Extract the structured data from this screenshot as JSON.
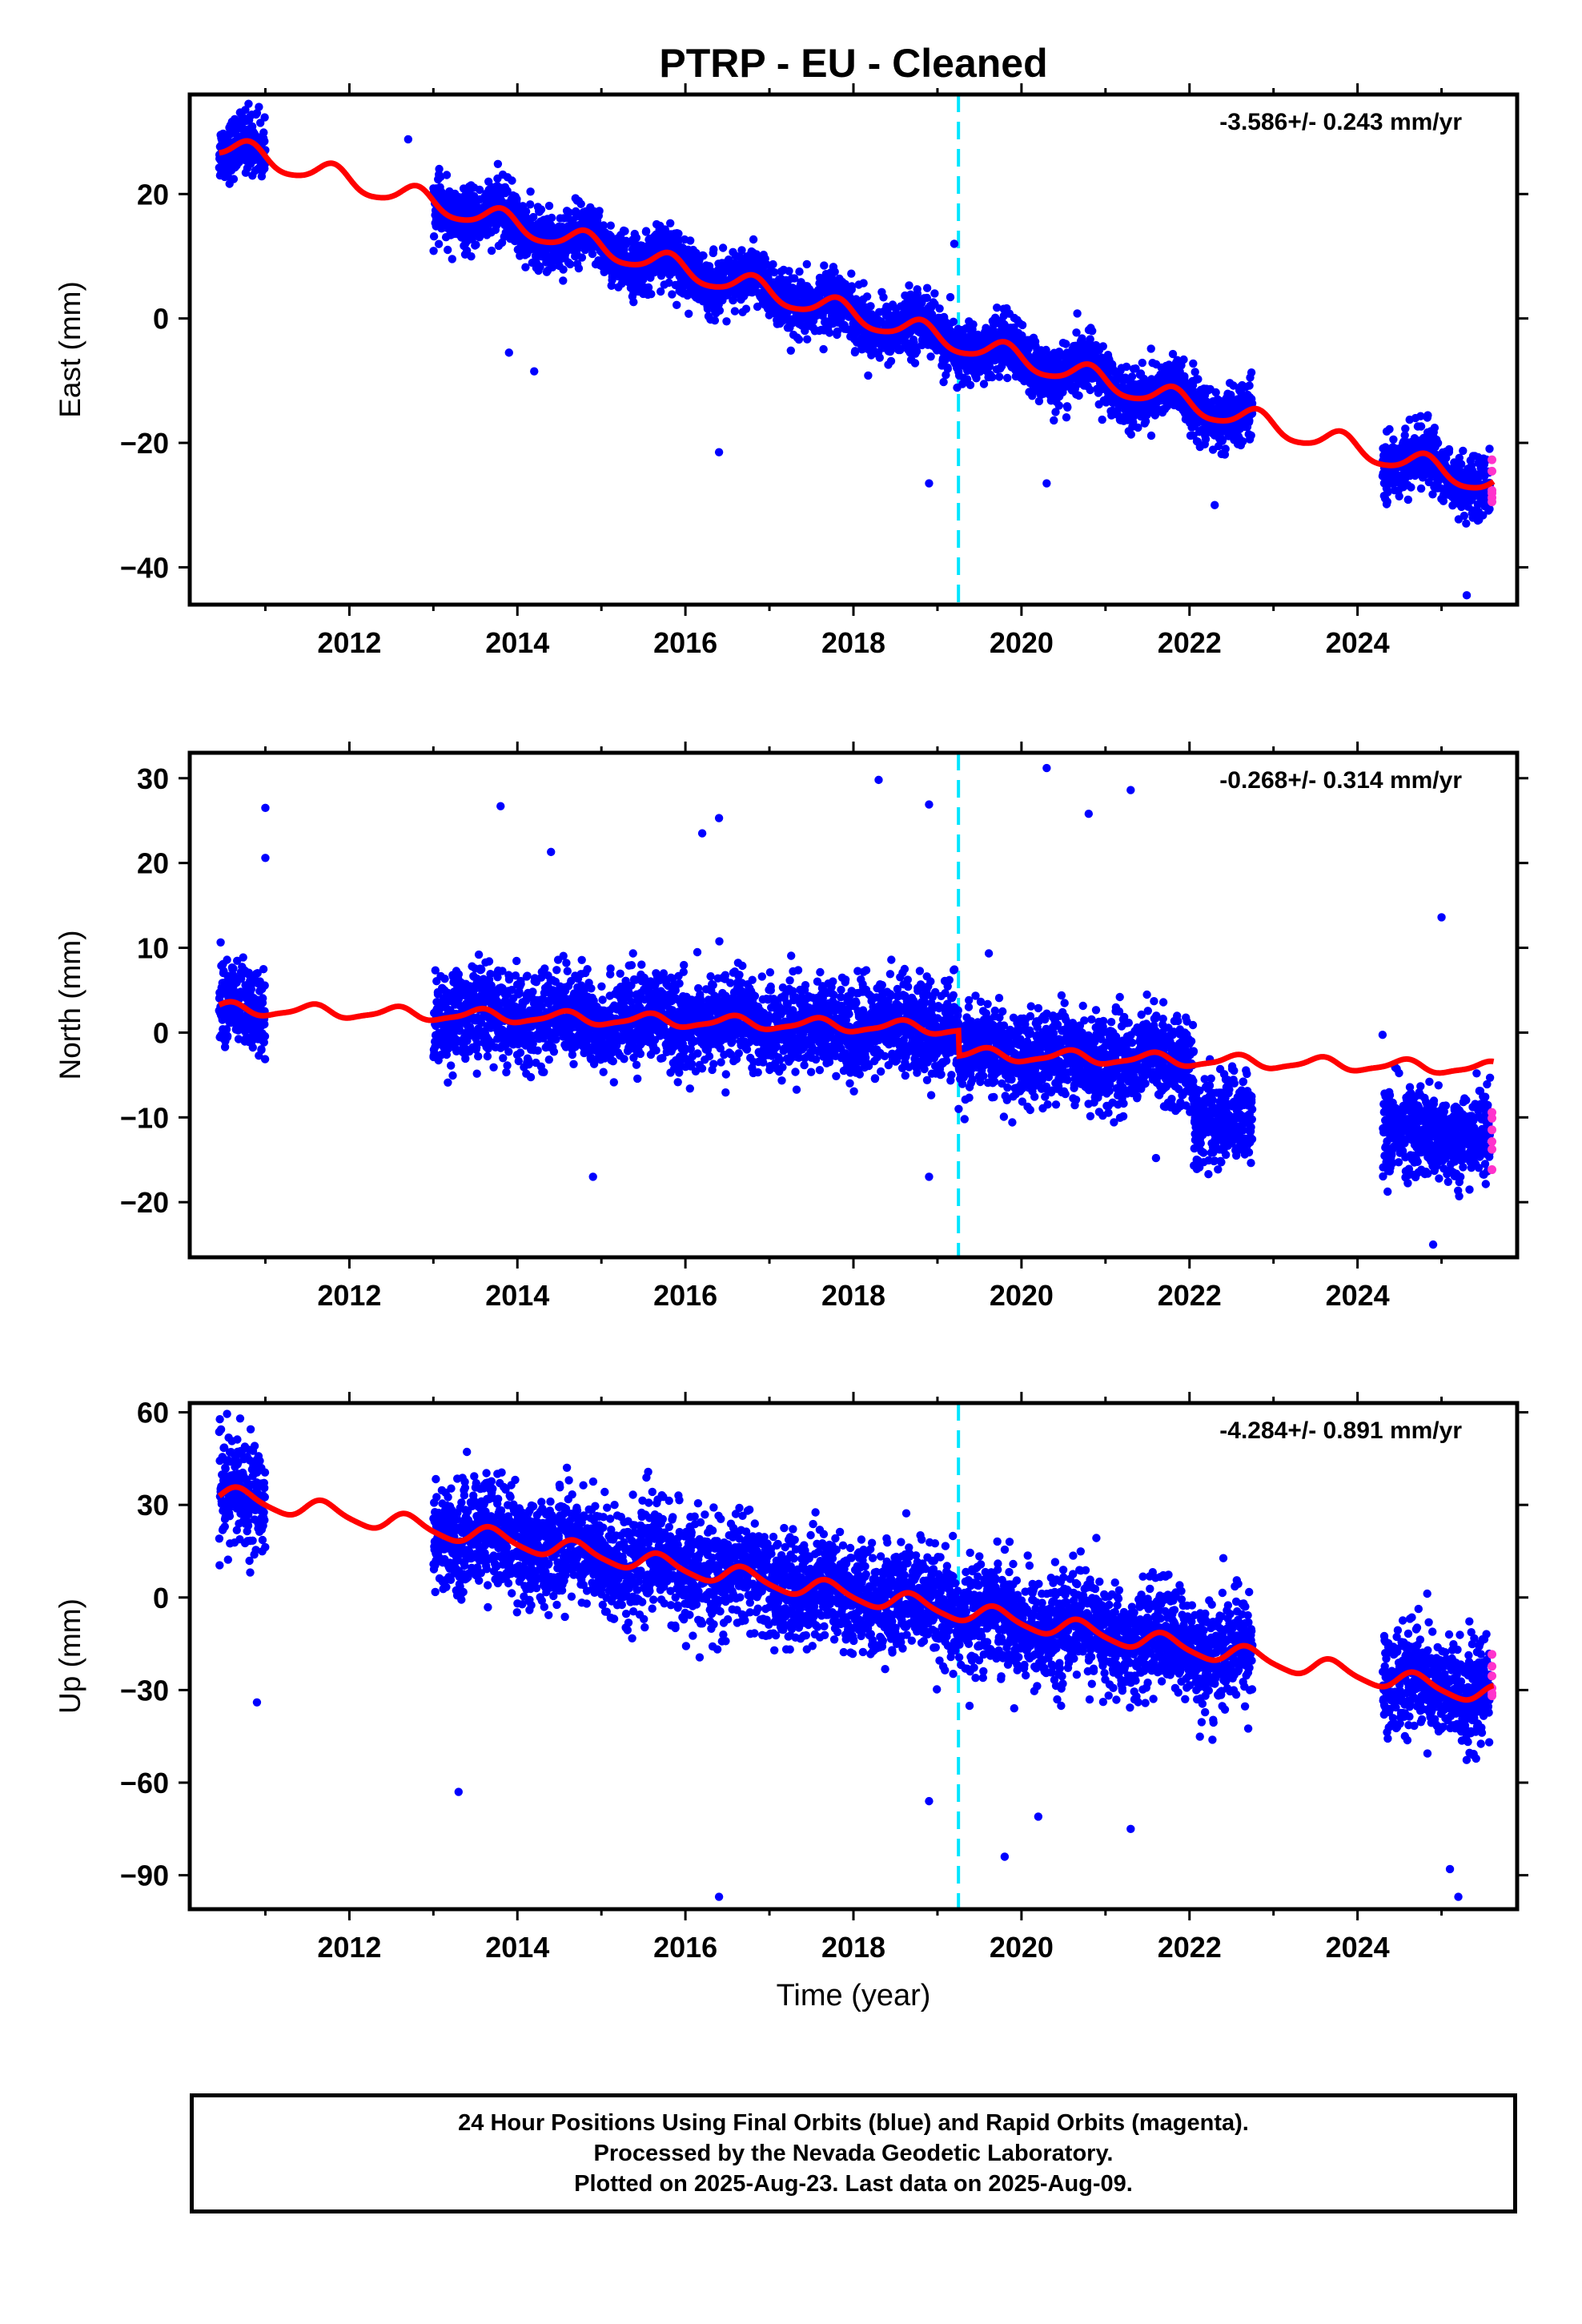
{
  "chart_data": {
    "type": "scatter",
    "title": "PTRP  - EU - Cleaned",
    "xlabel": "Time (year)",
    "xlim": [
      2010.1,
      2025.9
    ],
    "x_ticks": [
      "2012",
      "2014",
      "2016",
      "2018",
      "2020",
      "2022",
      "2024"
    ],
    "vertical_line_x": 2019.25,
    "vertical_line_color": "#00e5ff",
    "final_color": "#0000ff",
    "rapid_color": "#ff33cc",
    "model_color": "#ff0000",
    "panels": [
      {
        "ylabel": "East (mm)",
        "rate": "-3.586+/- 0.243 mm/yr",
        "ylim": [
          -46,
          36
        ],
        "yticks": [
          -40,
          -20,
          0,
          20
        ],
        "ytick_labels": [
          "−40",
          "−20",
          "0",
          "20"
        ],
        "model": {
          "t0": 2010.5,
          "v0": 27.5,
          "slope": -3.586,
          "a1": 1.8,
          "p1": 0.55,
          "a2": 0.3,
          "p2": 1.2,
          "breaks": []
        },
        "data": {
          "sd": 2.3,
          "outliers": [
            [
              2010.8,
              34.5
            ],
            [
              2010.9,
              33
            ],
            [
              2012.7,
              28.8
            ],
            [
              2013.9,
              -5.5
            ],
            [
              2014.2,
              -8.5
            ],
            [
              2016.4,
              -21.5
            ],
            [
              2018.9,
              -26.5
            ],
            [
              2019.2,
              12
            ],
            [
              2020.3,
              -26.5
            ],
            [
              2022.3,
              -30
            ],
            [
              2025.3,
              -44.5
            ]
          ]
        }
      },
      {
        "ylabel": "North (mm)",
        "rate": "-0.268+/- 0.314 mm/yr",
        "ylim": [
          -26.5,
          33
        ],
        "yticks": [
          -20,
          -10,
          0,
          10,
          20,
          30
        ],
        "ytick_labels": [
          "−20",
          "−10",
          "0",
          "10",
          "20",
          "30"
        ],
        "model": {
          "t0": 2010.5,
          "v0": 2.8,
          "slope": -0.268,
          "a1": 0.7,
          "p1": 0.3,
          "a2": 0.2,
          "p2": 1.0,
          "breaks": [
            [
              2019.25,
              -3.0
            ]
          ]
        },
        "data": {
          "sd": 2.6,
          "outliers": [
            [
              2011.0,
              26.5
            ],
            [
              2011.0,
              20.6
            ],
            [
              2013.8,
              26.7
            ],
            [
              2014.4,
              21.3
            ],
            [
              2014.9,
              -17
            ],
            [
              2016.2,
              23.5
            ],
            [
              2016.4,
              25.3
            ],
            [
              2018.3,
              29.8
            ],
            [
              2018.9,
              26.9
            ],
            [
              2018.9,
              -17
            ],
            [
              2020.3,
              31.2
            ],
            [
              2020.8,
              25.8
            ],
            [
              2021.3,
              28.6
            ],
            [
              2025.0,
              13.6
            ],
            [
              2024.9,
              -25
            ]
          ]
        }
      },
      {
        "ylabel": "Up (mm)",
        "rate": "-4.284+/- 0.891 mm/yr",
        "ylim": [
          -101,
          63
        ],
        "yticks": [
          -90,
          -60,
          -30,
          0,
          30,
          60
        ],
        "ytick_labels": [
          "−90",
          "−60",
          "−30",
          "0",
          "30",
          "60"
        ],
        "model": {
          "t0": 2010.5,
          "v0": 33,
          "slope": -4.284,
          "a1": 3.0,
          "p1": 0.45,
          "a2": 0.6,
          "p2": 1.5,
          "breaks": []
        },
        "data": {
          "sd": 8.5,
          "outliers": [
            [
              2010.7,
              58
            ],
            [
              2010.9,
              -34
            ],
            [
              2013.3,
              -63
            ],
            [
              2016.4,
              -97
            ],
            [
              2018.9,
              -66
            ],
            [
              2019.8,
              -84
            ],
            [
              2020.2,
              -71
            ],
            [
              2021.3,
              -75
            ],
            [
              2025.2,
              -97
            ],
            [
              2025.1,
              -88
            ]
          ]
        }
      }
    ]
  },
  "footer": {
    "line1": "24 Hour Positions Using Final Orbits (blue) and Rapid Orbits (magenta).",
    "line2": "Processed by the Nevada Geodetic Laboratory.",
    "line3": "Plotted on 2025-Aug-23. Last data on 2025-Aug-09."
  }
}
